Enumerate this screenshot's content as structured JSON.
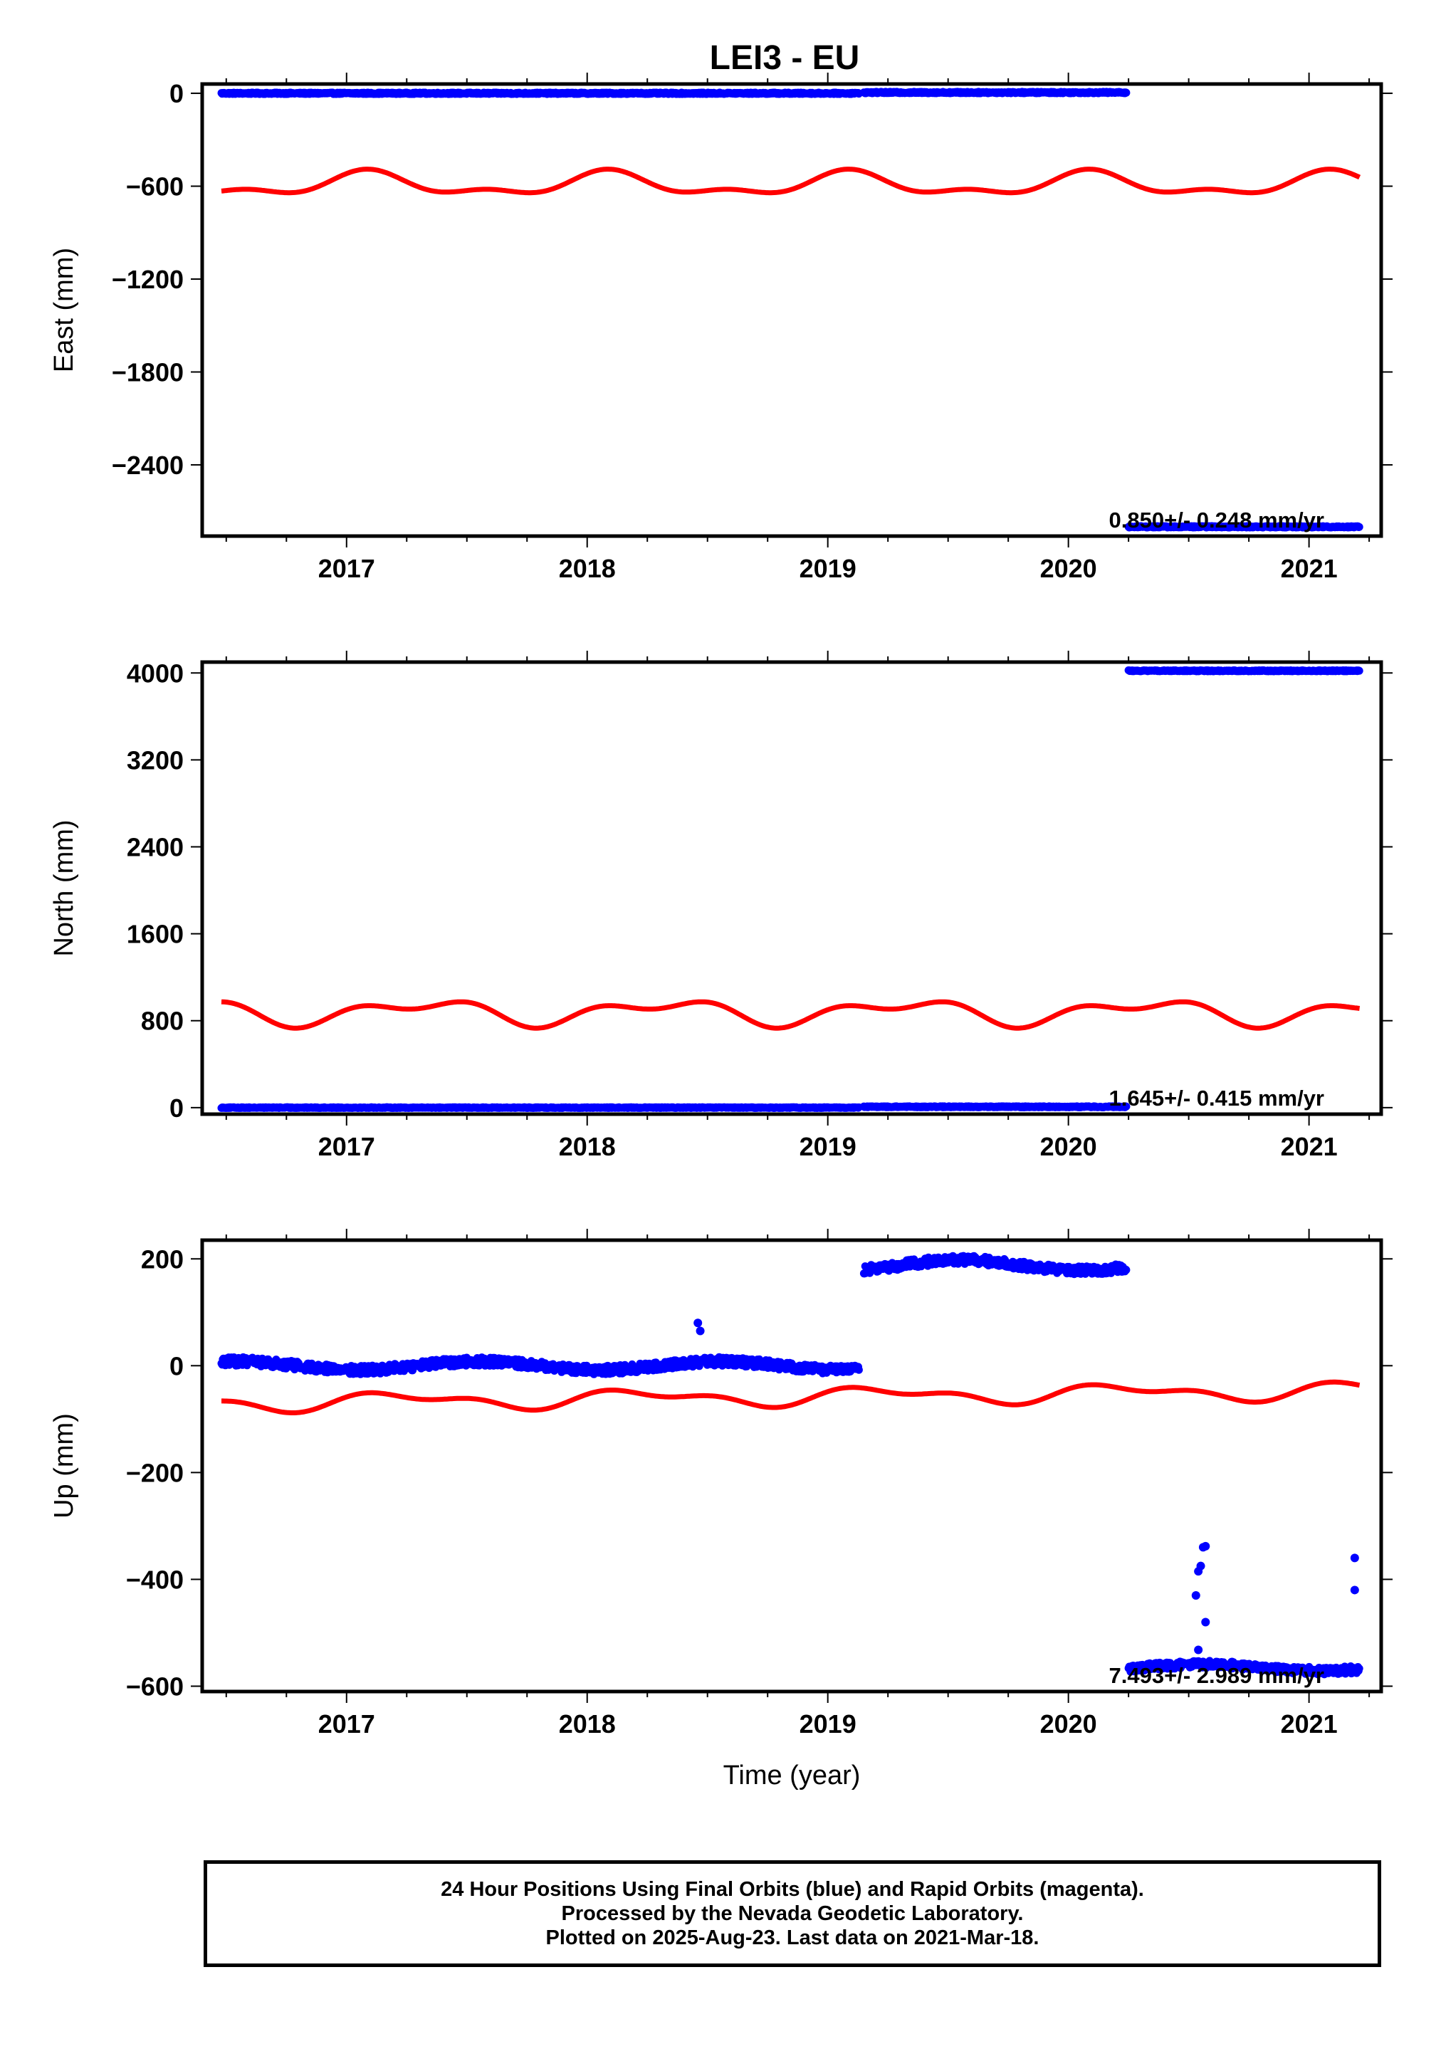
{
  "title": "LEI3 - EU",
  "footer": {
    "lines": [
      "24 Hour Positions Using Final Orbits (blue) and Rapid Orbits (magenta).",
      "Processed by the Nevada Geodetic Laboratory.",
      "Plotted on 2025-Aug-23. Last data on 2021-Mar-18."
    ]
  },
  "colors": {
    "observed": "#0000ff",
    "model": "#ff0000",
    "frame": "#000000"
  },
  "chart_data": [
    {
      "type": "scatter",
      "ylabel": "East (mm)",
      "xlabel": "",
      "xlim": [
        2016.4,
        2021.3
      ],
      "ylim": [
        -2860,
        60
      ],
      "xticks": [
        2017,
        2018,
        2019,
        2020,
        2021
      ],
      "yticks": [
        0,
        -600,
        -1200,
        -1800,
        -2400
      ],
      "ytick_labels": [
        "0",
        "−600",
        "−1200",
        "−1800",
        "−2400"
      ],
      "rate_label": "0.850+/- 0.248 mm/yr",
      "observed": [
        {
          "x_range": [
            2016.48,
            2019.13
          ],
          "y": 0,
          "scatter": 5
        },
        {
          "x_range": [
            2019.15,
            2020.24
          ],
          "y": 5,
          "scatter": 5
        },
        {
          "x_range": [
            2020.25,
            2021.21
          ],
          "y": -2800,
          "scatter": 5
        }
      ],
      "outliers": [],
      "model": {
        "x_range": [
          2016.48,
          2021.21
        ],
        "mean": -590,
        "annual_amp": 65,
        "annual_phase": 1.0,
        "semi_amp": 35,
        "semi_phase": 0.5,
        "trend": 0
      }
    },
    {
      "type": "scatter",
      "ylabel": "North (mm)",
      "xlabel": "",
      "xlim": [
        2016.4,
        2021.3
      ],
      "ylim": [
        -60,
        4100
      ],
      "xticks": [
        2017,
        2018,
        2019,
        2020,
        2021
      ],
      "yticks": [
        0,
        800,
        1600,
        2400,
        3200,
        4000
      ],
      "ytick_labels": [
        "0",
        "800",
        "1600",
        "2400",
        "3200",
        "4000"
      ],
      "rate_label": "1.645+/- 0.415 mm/yr",
      "observed": [
        {
          "x_range": [
            2016.48,
            2019.13
          ],
          "y": 0,
          "scatter": 4
        },
        {
          "x_range": [
            2019.15,
            2020.24
          ],
          "y": 8,
          "scatter": 5
        },
        {
          "x_range": [
            2020.25,
            2021.21
          ],
          "y": 4020,
          "scatter": 5
        }
      ],
      "outliers": [],
      "model": {
        "x_range": [
          2016.48,
          2021.21
        ],
        "mean": 880,
        "annual_amp": 90,
        "annual_phase": -0.4,
        "semi_amp": 60,
        "semi_phase": 1.2,
        "trend": 0
      }
    },
    {
      "type": "scatter",
      "ylabel": "Up (mm)",
      "xlabel": "Time (year)",
      "xlim": [
        2016.4,
        2021.3
      ],
      "ylim": [
        -610,
        235
      ],
      "xticks": [
        2017,
        2018,
        2019,
        2020,
        2021
      ],
      "yticks": [
        200,
        0,
        -200,
        -400,
        -600
      ],
      "ytick_labels": [
        "200",
        "0",
        "−200",
        "−400",
        "−600"
      ],
      "rate_label": "7.493+/- 2.989 mm/yr",
      "observed": [
        {
          "x_range": [
            2016.48,
            2019.13
          ],
          "y": 0,
          "scatter": 8,
          "wave": 8
        },
        {
          "x_range": [
            2019.15,
            2020.24
          ],
          "y": 188,
          "scatter": 8,
          "wave": 10
        },
        {
          "x_range": [
            2020.25,
            2021.21
          ],
          "y": -565,
          "scatter": 7,
          "wave": 6
        }
      ],
      "outliers": [
        {
          "x": 2018.46,
          "y": 80
        },
        {
          "x": 2018.47,
          "y": 65
        },
        {
          "x": 2020.54,
          "y": -385
        },
        {
          "x": 2020.55,
          "y": -375
        },
        {
          "x": 2020.53,
          "y": -430
        },
        {
          "x": 2020.56,
          "y": -340
        },
        {
          "x": 2020.57,
          "y": -338
        },
        {
          "x": 2020.57,
          "y": -480
        },
        {
          "x": 2020.54,
          "y": -532
        },
        {
          "x": 2021.19,
          "y": -360
        },
        {
          "x": 2021.19,
          "y": -420
        }
      ],
      "model": {
        "x_range": [
          2016.48,
          2021.21
        ],
        "mean": -70,
        "annual_amp": 13,
        "annual_phase": 0.2,
        "semi_amp": 8,
        "semi_phase": 0.9,
        "trend": 5
      }
    }
  ]
}
